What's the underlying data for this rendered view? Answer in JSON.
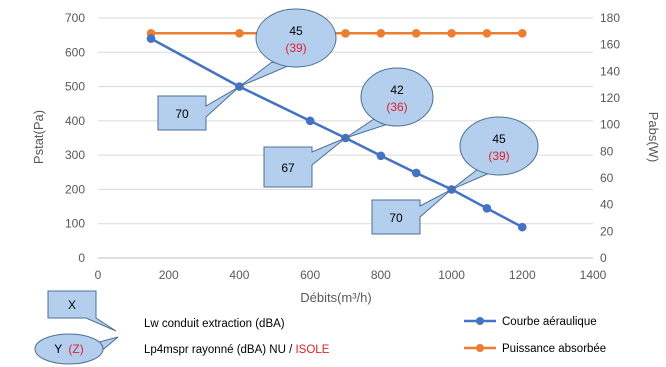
{
  "chart_data": {
    "type": "line",
    "x_axis": {
      "label": "Débits(m³/h)",
      "min": 0,
      "max": 1400,
      "step": 200,
      "ticks": [
        "0",
        "200",
        "400",
        "600",
        "800",
        "1000",
        "1200",
        "1400"
      ]
    },
    "y_axis_left": {
      "label": "Pstat(Pa)",
      "min": 0,
      "max": 700,
      "step": 100,
      "ticks": [
        "0",
        "100",
        "200",
        "300",
        "400",
        "500",
        "600",
        "700"
      ]
    },
    "y_axis_right": {
      "label": "Pabs(W)",
      "min": 0,
      "max": 180,
      "step": 20,
      "ticks": [
        "0",
        "20",
        "40",
        "60",
        "80",
        "100",
        "120",
        "140",
        "160",
        "180"
      ]
    },
    "grid": "horizontal",
    "series": [
      {
        "name": "Courbe aéraulique",
        "axis": "left",
        "color": "#4472c4",
        "x": [
          150,
          400,
          600,
          700,
          800,
          900,
          1000,
          1100,
          1200
        ],
        "y": [
          640,
          500,
          400,
          350,
          298,
          248,
          200,
          145,
          90
        ]
      },
      {
        "name": "Puissance absorbée",
        "axis": "right",
        "color": "#ed7d31",
        "x": [
          150,
          400,
          600,
          700,
          800,
          900,
          1000,
          1100,
          1200
        ],
        "y": [
          168.5,
          168.5,
          168.5,
          168.5,
          168.5,
          168.5,
          168.5,
          168.5,
          168.5
        ]
      }
    ],
    "annotations": [
      {
        "kind": "box",
        "text": "70",
        "point_x": 400,
        "point_y": 500
      },
      {
        "kind": "box",
        "text": "67",
        "point_x": 700,
        "point_y": 350
      },
      {
        "kind": "box",
        "text": "70",
        "point_x": 1000,
        "point_y": 200
      },
      {
        "kind": "bubble",
        "text": "45",
        "sub": "(39)",
        "point_x": 400,
        "point_y": 500
      },
      {
        "kind": "bubble",
        "text": "42",
        "sub": "(36)",
        "point_x": 700,
        "point_y": 350
      },
      {
        "kind": "bubble",
        "text": "45",
        "sub": "(39)",
        "point_x": 1000,
        "point_y": 200
      }
    ],
    "legend": {
      "placement": "bottom",
      "items": [
        {
          "name": "Courbe aéraulique",
          "color": "#4472c4"
        },
        {
          "name": "Puissance absorbée",
          "color": "#ed7d31"
        }
      ]
    },
    "key": {
      "box_label": "X",
      "box_text": "Lw conduit extraction (dBA)",
      "bubble_label": "Y",
      "bubble_sub": "(Z)",
      "bubble_text": "Lp4mspr rayonné (dBA) NU / ",
      "bubble_text_red": "ISOLE"
    },
    "colors": {
      "callout_fill": "#b4cfee",
      "callout_stroke": "#4b6f96",
      "highlight_red": "#e0202b",
      "grid": "#d9d9d9"
    }
  }
}
